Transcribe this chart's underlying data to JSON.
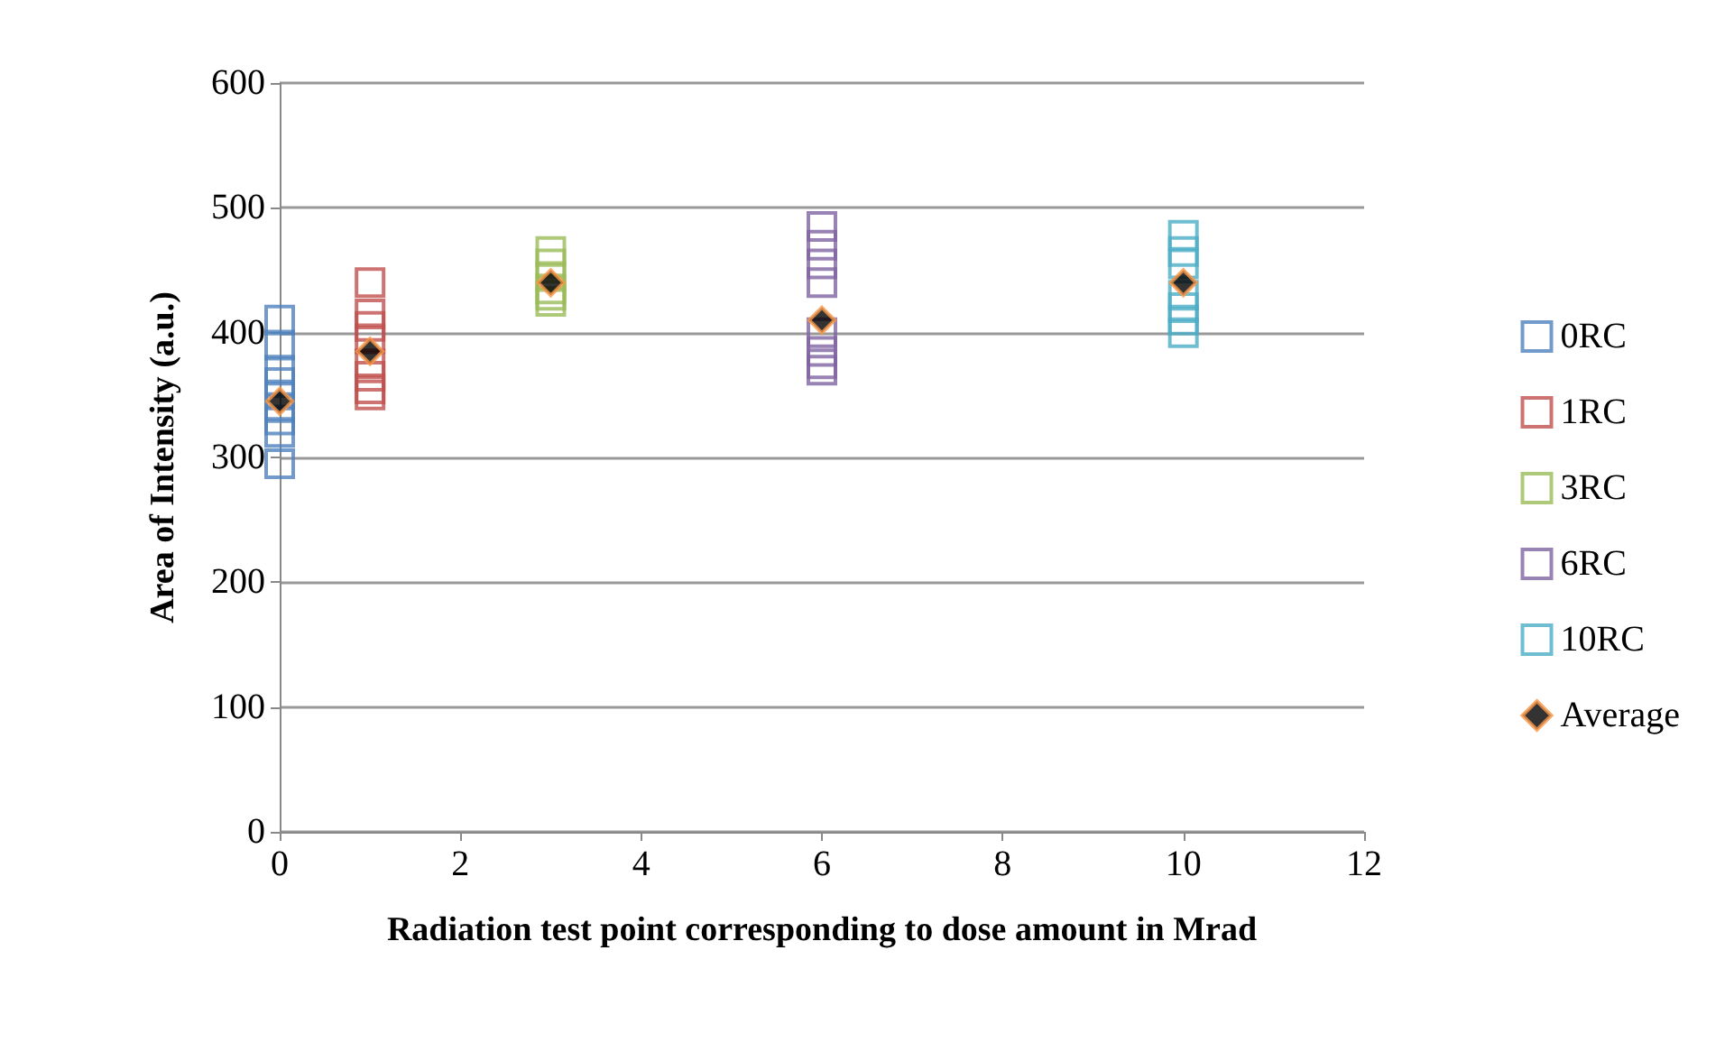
{
  "chart_data": {
    "type": "scatter",
    "xlabel": "Radiation test point corresponding to dose amount in Mrad",
    "ylabel": "Area of Intensity (a.u.)",
    "xlim": [
      0,
      12
    ],
    "xticks": [
      0,
      2,
      4,
      6,
      8,
      10,
      12
    ],
    "ylim": [
      0,
      600
    ],
    "yticks": [
      0,
      100,
      200,
      300,
      400,
      500,
      600
    ],
    "grid": "y",
    "legend": "right",
    "marker": "square",
    "series": [
      {
        "name": "0RC",
        "color": "#4f81bd",
        "x": [
          0,
          0,
          0,
          0,
          0,
          0,
          0,
          0,
          0
        ],
        "values": [
          410,
          390,
          370,
          360,
          350,
          340,
          330,
          320,
          295
        ]
      },
      {
        "name": "1RC",
        "color": "#c0504d",
        "x": [
          1,
          1,
          1,
          1,
          1,
          1,
          1,
          1
        ],
        "values": [
          440,
          415,
          405,
          395,
          375,
          365,
          355,
          350
        ]
      },
      {
        "name": "3RC",
        "color": "#9bbb59",
        "x": [
          3,
          3,
          3,
          3,
          3,
          3
        ],
        "values": [
          465,
          455,
          445,
          435,
          430,
          425
        ]
      },
      {
        "name": "6RC",
        "color": "#8064a2",
        "x": [
          6,
          6,
          6,
          6,
          6,
          6,
          6,
          6
        ],
        "values": [
          485,
          470,
          455,
          440,
          400,
          385,
          375,
          370
        ]
      },
      {
        "name": "10RC",
        "color": "#4bacc6",
        "x": [
          10,
          10,
          10,
          10,
          10,
          10,
          10
        ],
        "values": [
          478,
          465,
          455,
          430,
          420,
          410,
          400
        ]
      },
      {
        "name": "Average",
        "color": "#000000",
        "marker": "diamond",
        "x": [
          0,
          1,
          3,
          6,
          10
        ],
        "values": [
          345,
          385,
          440,
          410,
          440
        ]
      }
    ]
  }
}
